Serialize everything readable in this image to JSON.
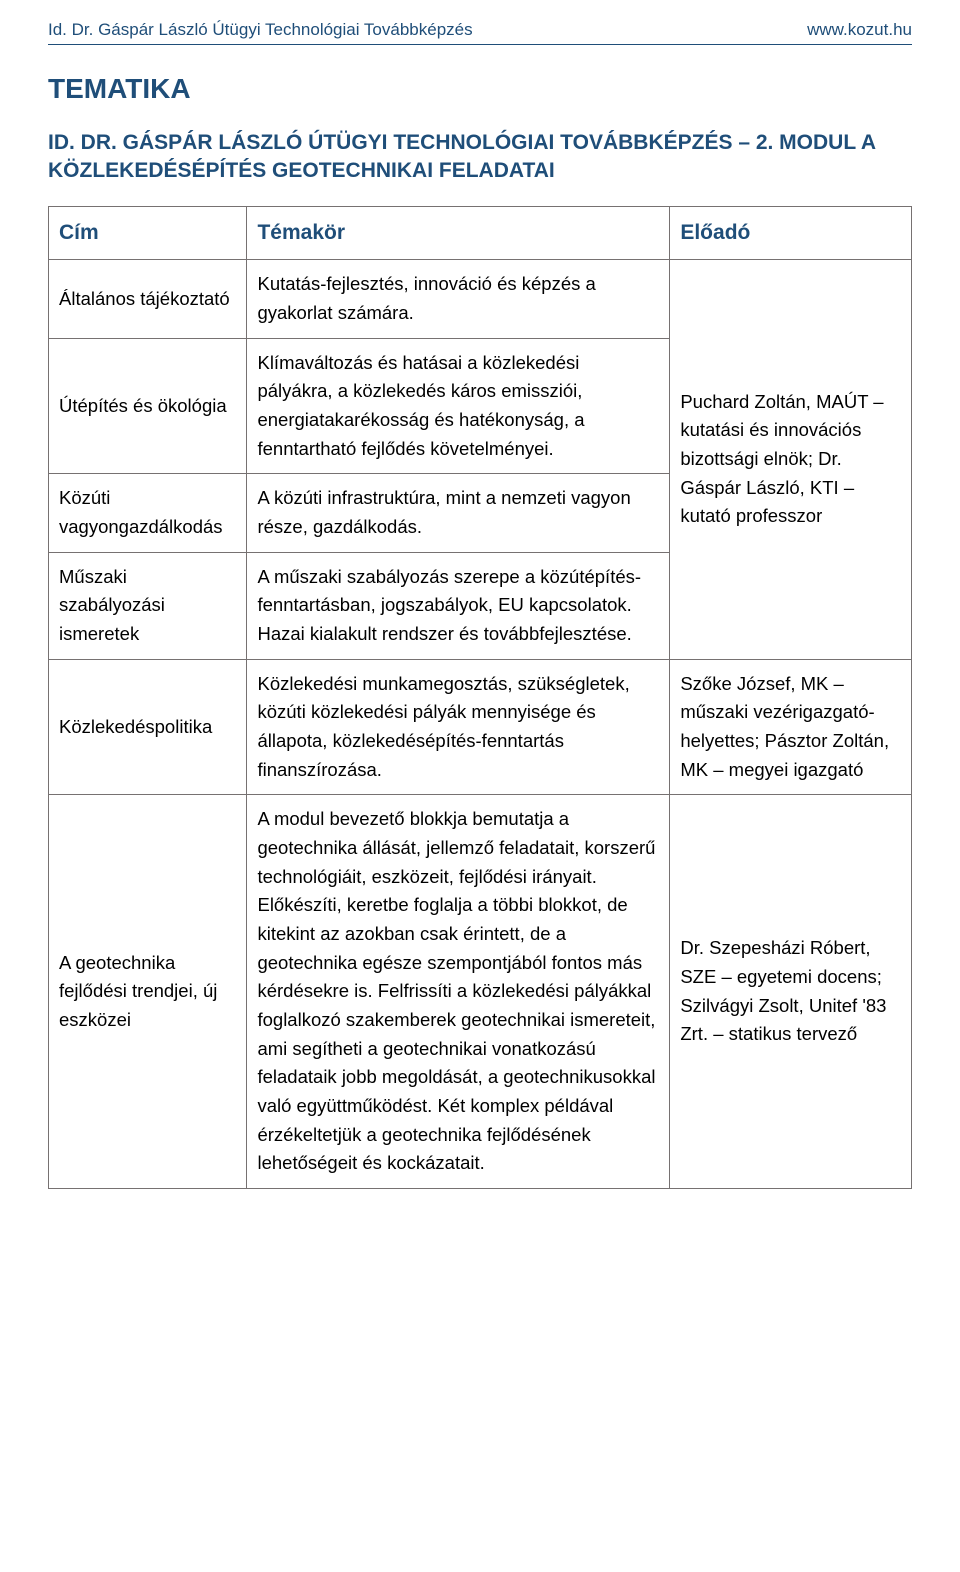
{
  "header": {
    "left": "Id. Dr. Gáspár László Útügyi Technológiai Továbbképzés",
    "right": "www.kozut.hu"
  },
  "section_title": "TEMATIKA",
  "course_title": "ID. DR. GÁSPÁR LÁSZLÓ ÚTÜGYI TECHNOLÓGIAI TOVÁBBKÉPZÉS – 2. MODUL A KÖZLEKEDÉSÉPÍTÉS GEOTECHNIKAI FELADATAI",
  "table": {
    "columns": {
      "cim": "Cím",
      "temakor": "Témakör",
      "eloado": "Előadó"
    },
    "col_widths": {
      "cim": "23%",
      "temakor": "49%",
      "eloado": "28%"
    },
    "border_color": "#767171",
    "heading_color": "#1f4e79",
    "font_size_pt": 14,
    "heading_font_size_pt": 16,
    "rows": {
      "r1_cim": "Általános tájékoztató",
      "r1_temakor": "Kutatás-fejlesztés, innováció és képzés a gyakorlat számára.",
      "r2_cim": "Útépítés és ökológia",
      "r2_temakor": "Klímaváltozás és hatásai a közlekedési pályákra, a közlekedés káros emissziói, energiatakarékosság és hatékonyság, a fenntartható fejlődés követelményei.",
      "r3_cim": "Közúti vagyongazdálkodás",
      "r3_temakor": "A közúti infrastruktúra, mint a nemzeti vagyon része, gazdálkodás.",
      "r4_cim": "Műszaki szabályozási ismeretek",
      "r4_temakor": "A műszaki szabályozás szerepe a közútépítés-fenntartásban, jogszabályok, EU kapcsolatok. Hazai kialakult rendszer és továbbfejlesztése.",
      "eloado_block1": "Puchard Zoltán, MAÚT – kutatási és innovációs bizottsági elnök; Dr. Gáspár László, KTI – kutató professzor",
      "r5_cim": "Közlekedéspolitika",
      "r5_temakor": "Közlekedési munkamegosztás, szükségletek, közúti közlekedési pályák mennyisége és állapota, közlekedésépítés-fenntartás finanszírozása.",
      "r5_eloado": "Szőke József, MK – műszaki vezérigazgató-helyettes; Pásztor Zoltán, MK – megyei igazgató",
      "r6_cim": "A geotechnika fejlődési trendjei, új eszközei",
      "r6_temakor": "A modul bevezető blokkja bemutatja a geotechnika állását, jellemző feladatait, korszerű technológiáit, eszközeit, fejlődési irányait. Előkészíti, keretbe foglalja a többi blokkot, de kitekint az azokban csak érintett, de a geotechnika egésze szempontjából fontos más kérdésekre is. Felfrissíti a közlekedési pályákkal foglalkozó szakemberek geotechnikai ismereteit, ami segítheti a geotechnikai vonatkozású feladataik jobb megoldását, a geotechnikusokkal való együttműködést. Két komplex példával érzékeltetjük a geotechnika fejlődésének lehetőségeit és kockázatait.",
      "r6_eloado": "Dr. Szepesházi Róbert, SZE – egyetemi docens; Szilvágyi Zsolt, Unitef '83 Zrt. – statikus tervező"
    }
  },
  "colors": {
    "brand": "#1f4e79",
    "border": "#767171",
    "text": "#000000",
    "background": "#ffffff"
  }
}
